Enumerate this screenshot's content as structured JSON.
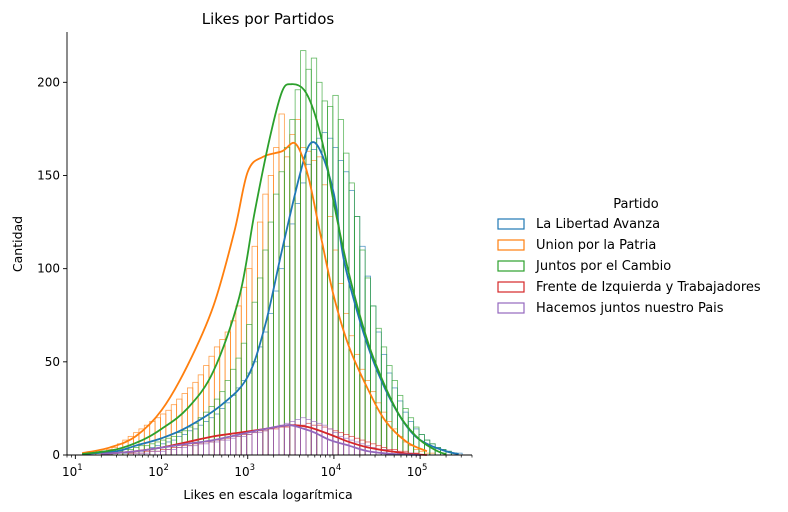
{
  "chart_data": {
    "type": "histogram",
    "title": "Likes por Partidos",
    "xlabel": "Likes en escala logarítmica",
    "ylabel": "Cantidad",
    "xscale": "log",
    "xlim": [
      8,
      400000
    ],
    "ylim": [
      0,
      227
    ],
    "x_ticks": [
      {
        "value": 10,
        "base": "10",
        "exp": "1"
      },
      {
        "value": 100,
        "base": "10",
        "exp": "2"
      },
      {
        "value": 1000,
        "base": "10",
        "exp": "3"
      },
      {
        "value": 10000,
        "base": "10",
        "exp": "4"
      },
      {
        "value": 100000,
        "base": "10",
        "exp": "5"
      }
    ],
    "y_ticks": [
      0,
      50,
      100,
      150,
      200
    ],
    "grid": false,
    "kde": true,
    "bin_log10_start": 1.05,
    "bin_log10_width": 0.0625,
    "legend": {
      "title": "Partido",
      "placement": "center-right outside"
    },
    "series": [
      {
        "name": "La Libertad Avanza",
        "color": "#1f77b4",
        "counts": [
          0,
          0,
          0,
          0,
          0,
          0,
          0,
          0,
          1,
          1,
          2,
          2,
          3,
          4,
          5,
          6,
          7,
          8,
          10,
          11,
          13,
          14,
          16,
          18,
          20,
          22,
          25,
          28,
          32,
          36,
          40,
          44,
          50,
          58,
          66,
          76,
          88,
          100,
          112,
          124,
          135,
          146,
          156,
          164,
          170,
          173,
          170,
          165,
          158,
          152,
          142,
          128,
          112,
          96,
          80,
          66,
          54,
          44,
          36,
          29,
          23,
          18,
          14,
          11,
          8,
          6,
          4,
          3,
          2,
          1,
          1,
          0,
          0
        ],
        "kde_x": [
          12,
          30,
          50,
          100,
          200,
          500,
          1000,
          1600,
          2500,
          4000,
          5300,
          7000,
          10000,
          13000,
          20000,
          30000,
          50000,
          80000,
          120000,
          200000,
          280000
        ],
        "kde_y": [
          0.5,
          2,
          5,
          9,
          15,
          27,
          42,
          70,
          110,
          150,
          167,
          163,
          140,
          105,
          72,
          48,
          26,
          12,
          6,
          2,
          0.5
        ]
      },
      {
        "name": "Union por la Patria",
        "color": "#ff7f0e",
        "counts": [
          0,
          0,
          1,
          1,
          2,
          3,
          4,
          6,
          8,
          10,
          12,
          14,
          16,
          18,
          20,
          22,
          24,
          27,
          30,
          33,
          36,
          39,
          43,
          48,
          53,
          58,
          62,
          66,
          72,
          80,
          90,
          100,
          112,
          125,
          140,
          150,
          165,
          183,
          160,
          172,
          180,
          165,
          163,
          158,
          160,
          145,
          128,
          110,
          92,
          76,
          64,
          54,
          46,
          40,
          34,
          28,
          23,
          18,
          14,
          10,
          7,
          5,
          3,
          2,
          1,
          1,
          0,
          0,
          0,
          0,
          0,
          0,
          0
        ],
        "kde_x": [
          12,
          25,
          50,
          100,
          200,
          400,
          700,
          1000,
          1500,
          2500,
          3600,
          5000,
          7000,
          10000,
          15000,
          25000,
          40000,
          70000,
          120000
        ],
        "kde_y": [
          1,
          4,
          10,
          24,
          48,
          80,
          120,
          152,
          160,
          163,
          167,
          150,
          118,
          85,
          58,
          35,
          18,
          7,
          2
        ]
      },
      {
        "name": "Juntos por el Cambio",
        "color": "#2ca02c",
        "counts": [
          0,
          0,
          0,
          0,
          0,
          1,
          1,
          2,
          3,
          3,
          4,
          5,
          5,
          6,
          7,
          8,
          9,
          10,
          12,
          13,
          15,
          17,
          20,
          23,
          26,
          30,
          34,
          40,
          46,
          52,
          60,
          70,
          82,
          95,
          110,
          125,
          140,
          152,
          165,
          180,
          196,
          217,
          207,
          213,
          200,
          190,
          187,
          193,
          180,
          162,
          146,
          128,
          110,
          95,
          80,
          68,
          58,
          48,
          40,
          32,
          25,
          20,
          15,
          11,
          8,
          6,
          4,
          3,
          2,
          1,
          0,
          0,
          0
        ],
        "kde_x": [
          12,
          30,
          60,
          100,
          200,
          400,
          800,
          1200,
          1800,
          2500,
          3200,
          4500,
          6000,
          8000,
          10000,
          15000,
          25000,
          40000,
          60000,
          100000,
          160000,
          200000
        ],
        "kde_y": [
          0.5,
          3,
          8,
          14,
          25,
          45,
          85,
          130,
          170,
          195,
          199,
          196,
          183,
          160,
          135,
          97,
          60,
          36,
          20,
          8,
          2,
          0.5
        ]
      },
      {
        "name": "Frente de Izquierda y Trabajadores",
        "color": "#d62728",
        "counts": [
          0,
          0,
          0,
          0,
          0,
          0,
          0,
          0,
          0,
          1,
          1,
          1,
          2,
          2,
          2,
          3,
          3,
          4,
          4,
          5,
          5,
          6,
          6,
          7,
          7,
          8,
          8,
          9,
          10,
          10,
          11,
          11,
          12,
          13,
          13,
          14,
          14,
          15,
          15,
          16,
          16,
          16,
          17,
          16,
          16,
          15,
          14,
          13,
          12,
          11,
          10,
          9,
          8,
          7,
          6,
          5,
          4,
          3,
          3,
          2,
          2,
          1,
          1,
          0,
          0,
          0,
          0,
          0,
          0,
          0,
          0,
          0,
          0
        ],
        "kde_x": [
          20,
          50,
          100,
          200,
          400,
          800,
          1600,
          3000,
          5000,
          9000,
          15000,
          25000,
          45000,
          80000,
          120000
        ],
        "kde_y": [
          0.5,
          2,
          4,
          7,
          10,
          12,
          14,
          16,
          15,
          11,
          7,
          4,
          2,
          0.5,
          0
        ]
      },
      {
        "name": "Hacemos juntos nuestro Pais",
        "color": "#9467bd",
        "counts": [
          0,
          0,
          0,
          0,
          0,
          0,
          0,
          0,
          0,
          0,
          1,
          1,
          1,
          2,
          2,
          2,
          3,
          3,
          4,
          4,
          5,
          5,
          6,
          6,
          7,
          7,
          8,
          8,
          9,
          10,
          10,
          11,
          12,
          12,
          13,
          14,
          15,
          16,
          17,
          18,
          19,
          20,
          19,
          18,
          17,
          16,
          14,
          12,
          10,
          9,
          8,
          7,
          6,
          5,
          4,
          3,
          3,
          2,
          2,
          1,
          1,
          1,
          0,
          0,
          0,
          0,
          0,
          0,
          0,
          0,
          0,
          0,
          0
        ],
        "kde_x": [
          20,
          50,
          100,
          200,
          400,
          800,
          1600,
          3000,
          4500,
          6000,
          9000,
          15000,
          25000,
          50000,
          100000
        ],
        "kde_y": [
          0.5,
          2,
          4,
          6,
          8,
          11,
          14,
          16,
          14,
          12,
          8,
          5,
          2,
          0.5,
          0
        ]
      }
    ]
  }
}
